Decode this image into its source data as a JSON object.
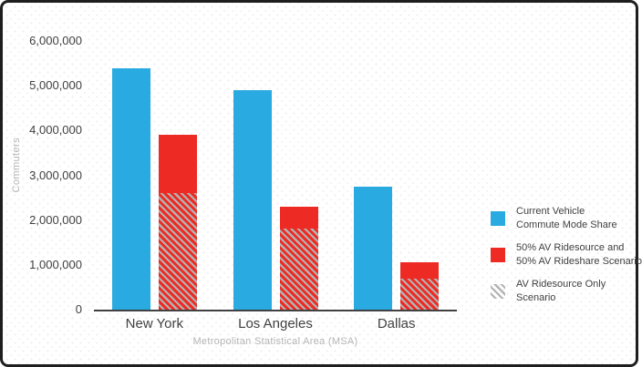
{
  "colors": {
    "accent_blue": "#29abe2",
    "accent_red": "#ed2b24",
    "hatch_gray": "#b3b3b3",
    "text_dark": "#414042",
    "text_light": "#b5b5b5",
    "axis_line": "#414042",
    "frame_border": "#1e1e1e",
    "background": "#ffffff"
  },
  "chart_data": {
    "type": "bar",
    "title": "",
    "categories": [
      "New York",
      "Los Angeles",
      "Dallas"
    ],
    "series": [
      {
        "name": "Current Vehicle Commute Mode Share",
        "color": "#29abe2",
        "values": [
          5400000,
          4900000,
          2750000
        ]
      },
      {
        "name": "50% AV Ridesource and 50% AV Rideshare Scenario",
        "color": "#ed2b24",
        "values": [
          3900000,
          2300000,
          1050000
        ]
      },
      {
        "name": "AV Ridesource Only Scenario",
        "style": "gray-diagonal-hatch-overlay-on-red-bar",
        "values": [
          2600000,
          1800000,
          700000
        ]
      }
    ],
    "xlabel": "Metropolitan Statistical Area (MSA)",
    "ylabel": "Commuters",
    "ylim": [
      0,
      6000000
    ],
    "ytick_interval": 1000000,
    "yticks": [
      "6,000,000",
      "5,000,000",
      "4,000,000",
      "3,000,000",
      "2,000,000",
      "1,000,000",
      "0"
    ],
    "grid": false,
    "legend_position": "right"
  },
  "legend": {
    "items": [
      {
        "swatch": "blue",
        "lines": [
          "Current Vehicle",
          "Commute Mode Share"
        ]
      },
      {
        "swatch": "red",
        "lines": [
          "50% AV Ridesource and",
          "50% AV Rideshare Scenario"
        ]
      },
      {
        "swatch": "hatch",
        "lines": [
          "AV Ridesource Only",
          "Scenario"
        ]
      }
    ]
  }
}
